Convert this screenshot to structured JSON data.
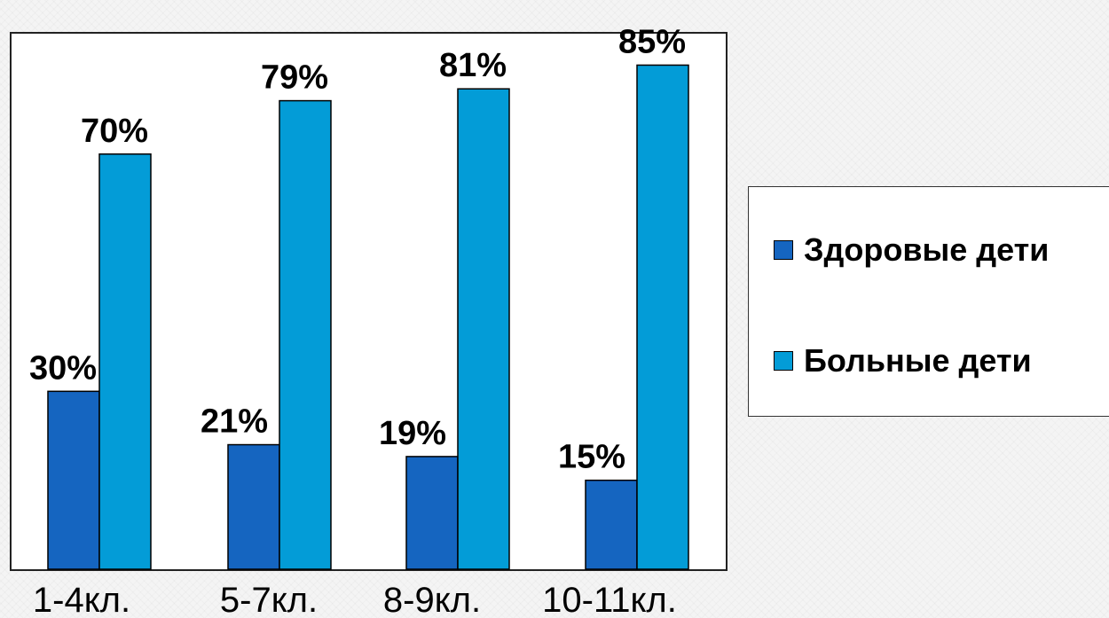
{
  "chart_data": {
    "type": "bar",
    "categories": [
      "1-4кл.",
      "5-7кл.",
      "8-9кл.",
      "10-11кл."
    ],
    "series": [
      {
        "name": "Здоровые дети",
        "values": [
          30,
          21,
          19,
          15
        ],
        "labels": [
          "30%",
          "21%",
          "19%",
          "15%"
        ],
        "color": "#1565c0"
      },
      {
        "name": "Больные дети",
        "values": [
          70,
          79,
          81,
          85
        ],
        "labels": [
          "70%",
          "79%",
          "81%",
          "85%"
        ],
        "color": "#039cd7"
      }
    ],
    "ylim": [
      0,
      90
    ],
    "grid": false,
    "legend": "right"
  }
}
